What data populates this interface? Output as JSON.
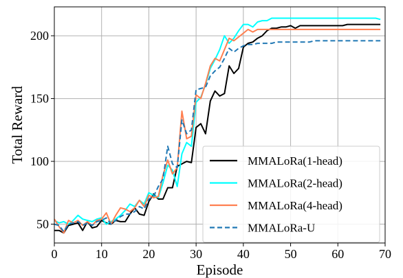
{
  "chart_data": {
    "type": "line",
    "xlabel": "Episode",
    "ylabel": "Total Reward",
    "xlim": [
      0,
      70
    ],
    "ylim": [
      35,
      223
    ],
    "xticks": [
      0,
      10,
      20,
      30,
      40,
      50,
      60,
      70
    ],
    "yticks": [
      50,
      100,
      150,
      200
    ],
    "grid": true,
    "legend_position": "bottom-right",
    "x": [
      0,
      1,
      2,
      3,
      4,
      5,
      6,
      7,
      8,
      9,
      10,
      11,
      12,
      13,
      14,
      15,
      16,
      17,
      18,
      19,
      20,
      21,
      22,
      23,
      24,
      25,
      26,
      27,
      28,
      29,
      30,
      31,
      32,
      33,
      34,
      35,
      36,
      37,
      38,
      39,
      40,
      41,
      42,
      43,
      44,
      45,
      46,
      47,
      48,
      49,
      50,
      51,
      52,
      53,
      54,
      55,
      56,
      57,
      58,
      59,
      60,
      61,
      62,
      63,
      64,
      65,
      66,
      67,
      68,
      69
    ],
    "series": [
      {
        "name": "MMALoRa(1-head)",
        "color": "#000000",
        "style": "solid",
        "values": [
          45,
          45,
          43,
          49,
          50,
          51,
          45,
          52,
          47,
          48,
          53,
          51,
          50,
          53,
          52,
          52,
          58,
          63,
          58,
          57,
          68,
          74,
          70,
          70,
          79,
          79,
          96,
          98,
          100,
          99,
          127,
          130,
          122,
          148,
          156,
          152,
          154,
          176,
          170,
          174,
          191,
          194,
          195,
          198,
          200,
          204,
          206,
          206,
          207,
          207,
          208,
          206,
          208,
          208,
          208,
          208,
          208,
          208,
          208,
          208,
          208,
          208,
          209,
          209,
          209,
          209,
          209,
          209,
          209,
          209
        ]
      },
      {
        "name": "MMALoRa(2-head)",
        "color": "#00ffff",
        "style": "solid",
        "values": [
          53,
          51,
          52,
          50,
          53,
          57,
          54,
          53,
          52,
          54,
          55,
          50,
          52,
          54,
          57,
          61,
          66,
          64,
          69,
          66,
          75,
          73,
          71,
          83,
          97,
          93,
          80,
          106,
          115,
          112,
          147,
          151,
          161,
          174,
          181,
          189,
          200,
          194,
          198,
          204,
          209,
          209,
          207,
          211,
          212,
          212,
          214,
          214,
          214,
          214,
          214,
          214,
          214,
          214,
          214,
          214,
          214,
          214,
          214,
          214,
          214,
          214,
          214,
          214,
          214,
          214,
          214,
          214,
          214,
          213
        ]
      },
      {
        "name": "MMALoRa(4-head)",
        "color": "#ff7f50",
        "style": "solid",
        "values": [
          54,
          48,
          43,
          53,
          51,
          53,
          49,
          52,
          49,
          53,
          54,
          59,
          50,
          57,
          63,
          62,
          60,
          63,
          69,
          64,
          73,
          71,
          72,
          89,
          101,
          90,
          95,
          140,
          118,
          120,
          153,
          150,
          162,
          176,
          182,
          180,
          189,
          198,
          196,
          199,
          202,
          205,
          203,
          205,
          205,
          205,
          205,
          205,
          205,
          205,
          205,
          205,
          205,
          205,
          205,
          205,
          205,
          205,
          205,
          205,
          205,
          205,
          205,
          205,
          205,
          205,
          205,
          205,
          205,
          205
        ]
      },
      {
        "name": "MMALoRa-U",
        "color": "#1f77b4",
        "style": "dashed",
        "values": [
          50,
          49,
          44,
          50,
          51,
          52,
          49,
          51,
          49,
          52,
          53,
          55,
          50,
          53,
          56,
          58,
          58,
          60,
          64,
          62,
          70,
          72,
          80,
          86,
          112,
          98,
          95,
          133,
          122,
          125,
          157,
          158,
          159,
          168,
          172,
          175,
          182,
          190,
          187,
          190,
          192,
          193,
          193,
          194,
          194,
          194,
          194,
          195,
          195,
          195,
          195,
          195,
          195,
          195,
          195,
          196,
          196,
          196,
          196,
          196,
          196,
          196,
          196,
          196,
          196,
          196,
          196,
          196,
          196,
          196
        ]
      }
    ]
  }
}
